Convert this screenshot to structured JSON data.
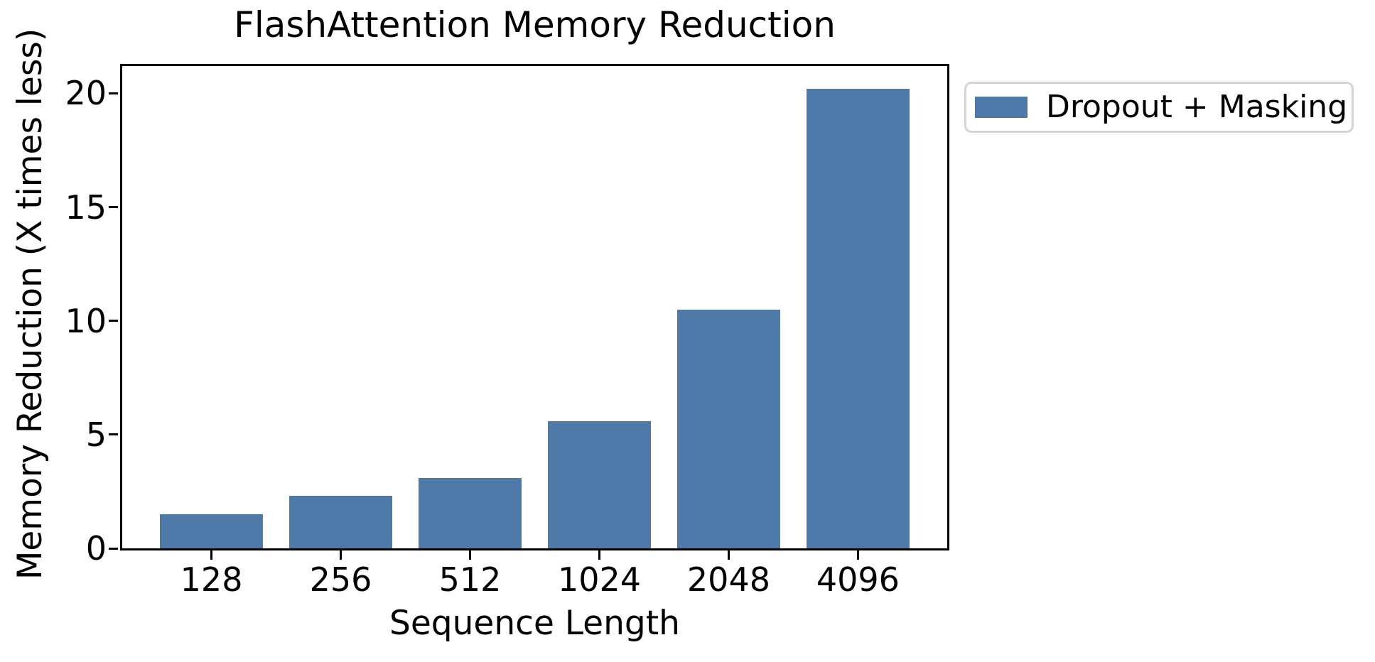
{
  "chart_data": {
    "type": "bar",
    "title": "FlashAttention Memory Reduction",
    "xlabel": "Sequence Length",
    "ylabel": "Memory Reduction (X times less)",
    "categories": [
      "128",
      "256",
      "512",
      "1024",
      "2048",
      "4096"
    ],
    "series": [
      {
        "name": "Dropout + Masking",
        "values": [
          1.5,
          2.3,
          3.1,
          5.6,
          10.5,
          20.2
        ]
      }
    ],
    "yticks": [
      0,
      5,
      10,
      15,
      20
    ],
    "ylim": [
      0,
      21.2
    ],
    "grid": false,
    "legend_position": "outside-upper-right",
    "bar_color": "#4d7aa8",
    "spine_color": "#000000",
    "legend_border_color": "#d4d4d4"
  }
}
